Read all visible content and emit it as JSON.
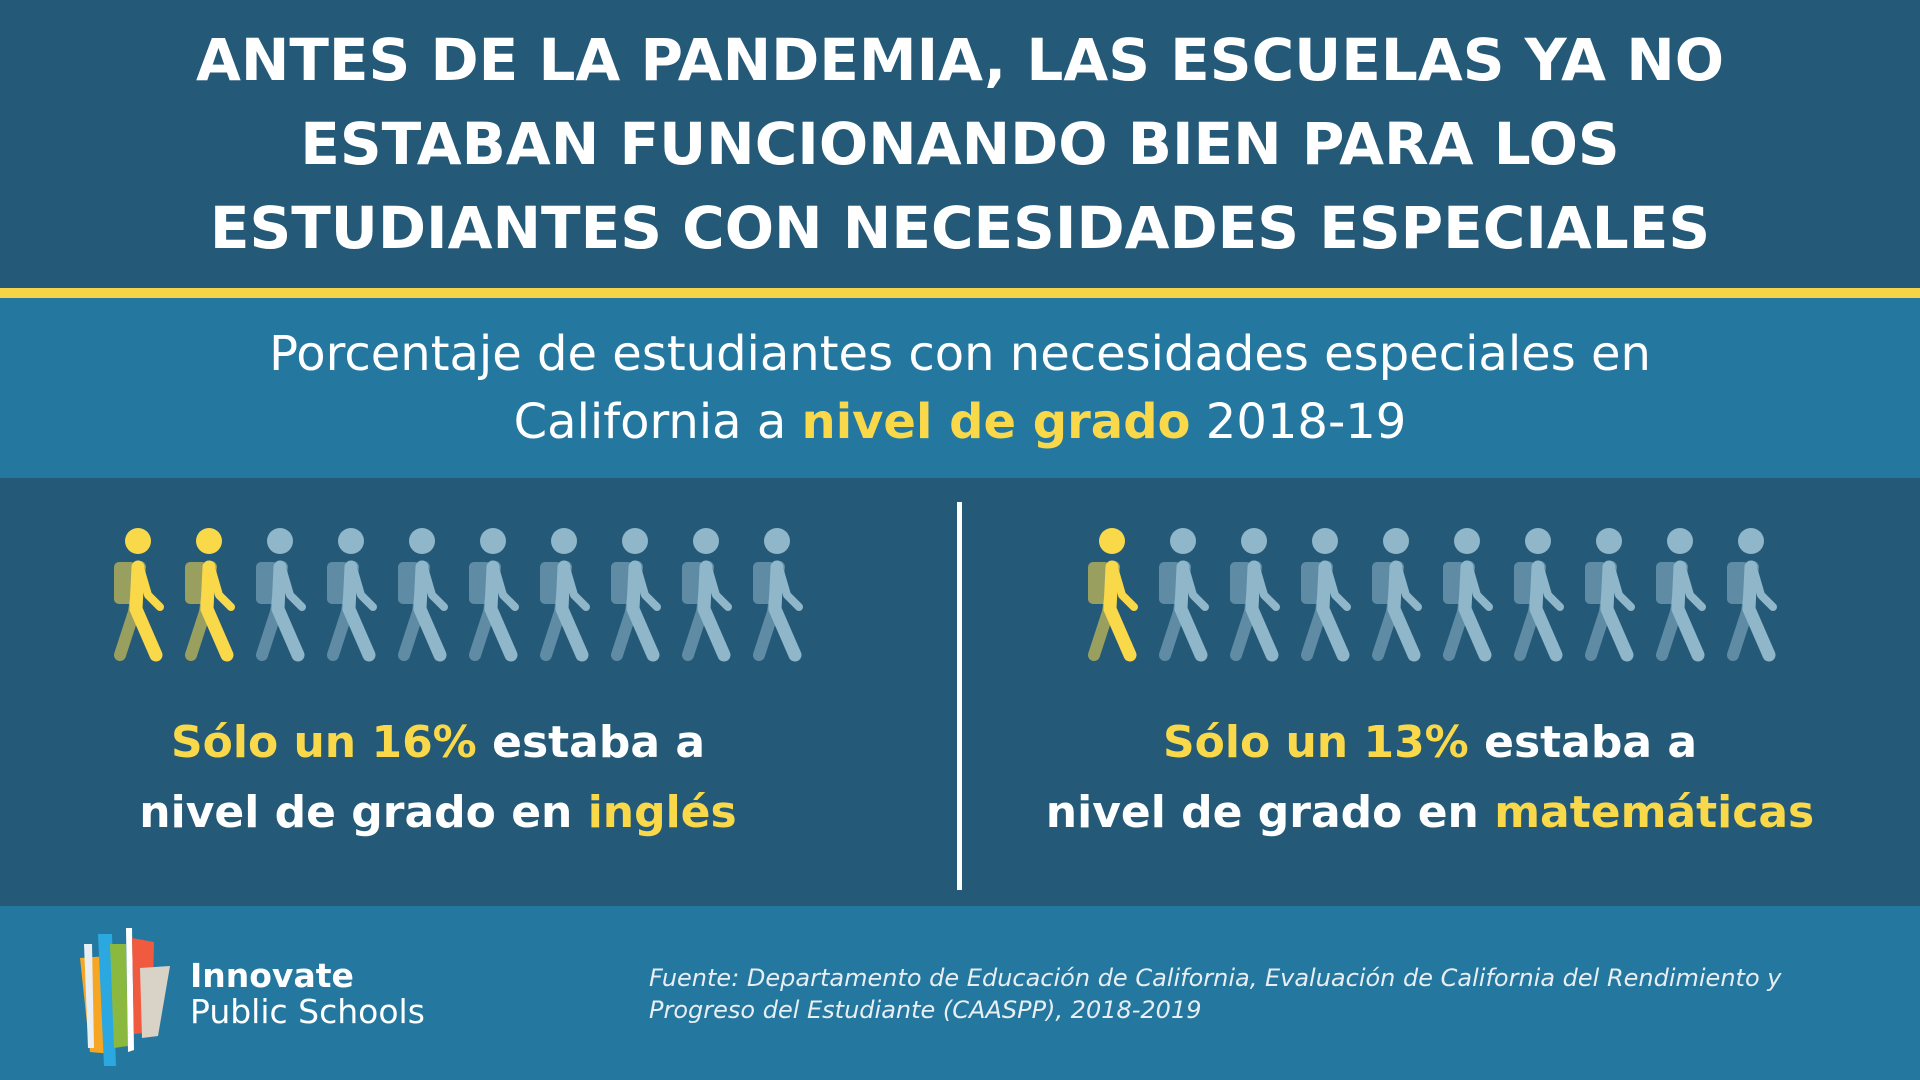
{
  "title": {
    "lines": [
      "ANTES DE LA PANDEMIA, LAS ESCUELAS YA NO",
      "ESTABAN FUNCIONANDO BIEN PARA LOS",
      "ESTUDIANTES CON NECESIDADES ESPECIALES"
    ]
  },
  "subtitle": {
    "line1": "Porcentaje de estudiantes con necesidades especiales en",
    "line2_a": "California a ",
    "line2_highlight": "nivel de grado",
    "line2_b": " 2018-19"
  },
  "english": {
    "highlight": "Sólo un 16%",
    "text1": " estaba a",
    "text2": "nivel de grado en ",
    "subject": "inglés",
    "percent": 16,
    "highlighted_figures": 2,
    "total_figures": 10
  },
  "math": {
    "highlight": "Sólo un 13%",
    "text1": " estaba a",
    "text2": "nivel de grado en ",
    "subject": "matemáticas",
    "percent": 13,
    "highlighted_figures": 1,
    "total_figures": 10
  },
  "footer": {
    "brand_bold": "Innovate",
    "brand_light": "Public Schools",
    "source_line1": "Fuente: Departamento de Educación de California, Evaluación de California del Rendimiento y",
    "source_line2": "Progreso del Estudiante (CAASPP), 2018-2019"
  },
  "colors": {
    "highlight": "#f9d84a",
    "muted": "#8fb6c9",
    "dark": "#245a78",
    "mid": "#2478a0"
  }
}
